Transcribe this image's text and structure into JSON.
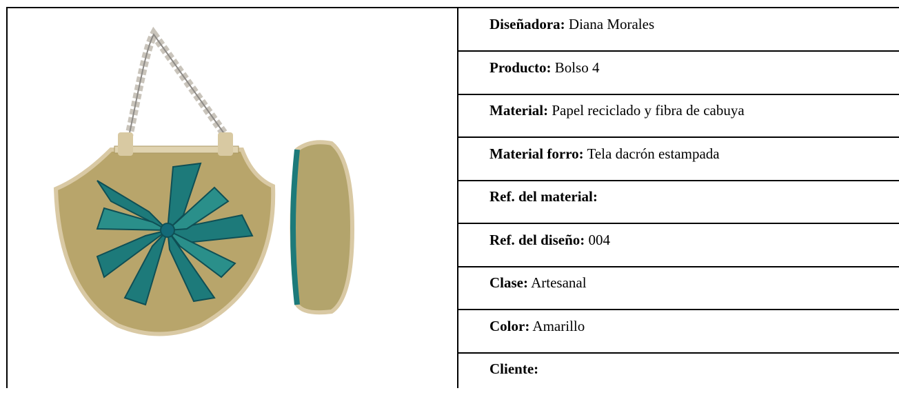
{
  "rows": [
    {
      "label": "Diseñadora:",
      "value": "Diana Morales"
    },
    {
      "label": "Producto:",
      "value": "Bolso 4"
    },
    {
      "label": "Material:",
      "value": "Papel reciclado y fibra de cabuya"
    },
    {
      "label": "Material forro:",
      "value": "Tela dacrón estampada"
    },
    {
      "label": "Ref. del material:"
    },
    {
      "label": "Ref. del diseño:",
      "value": "004"
    },
    {
      "label": "Clase:",
      "value": "Artesanal"
    },
    {
      "label": "Color:",
      "value": "Amarillo"
    },
    {
      "label": "Cliente:"
    }
  ]
}
